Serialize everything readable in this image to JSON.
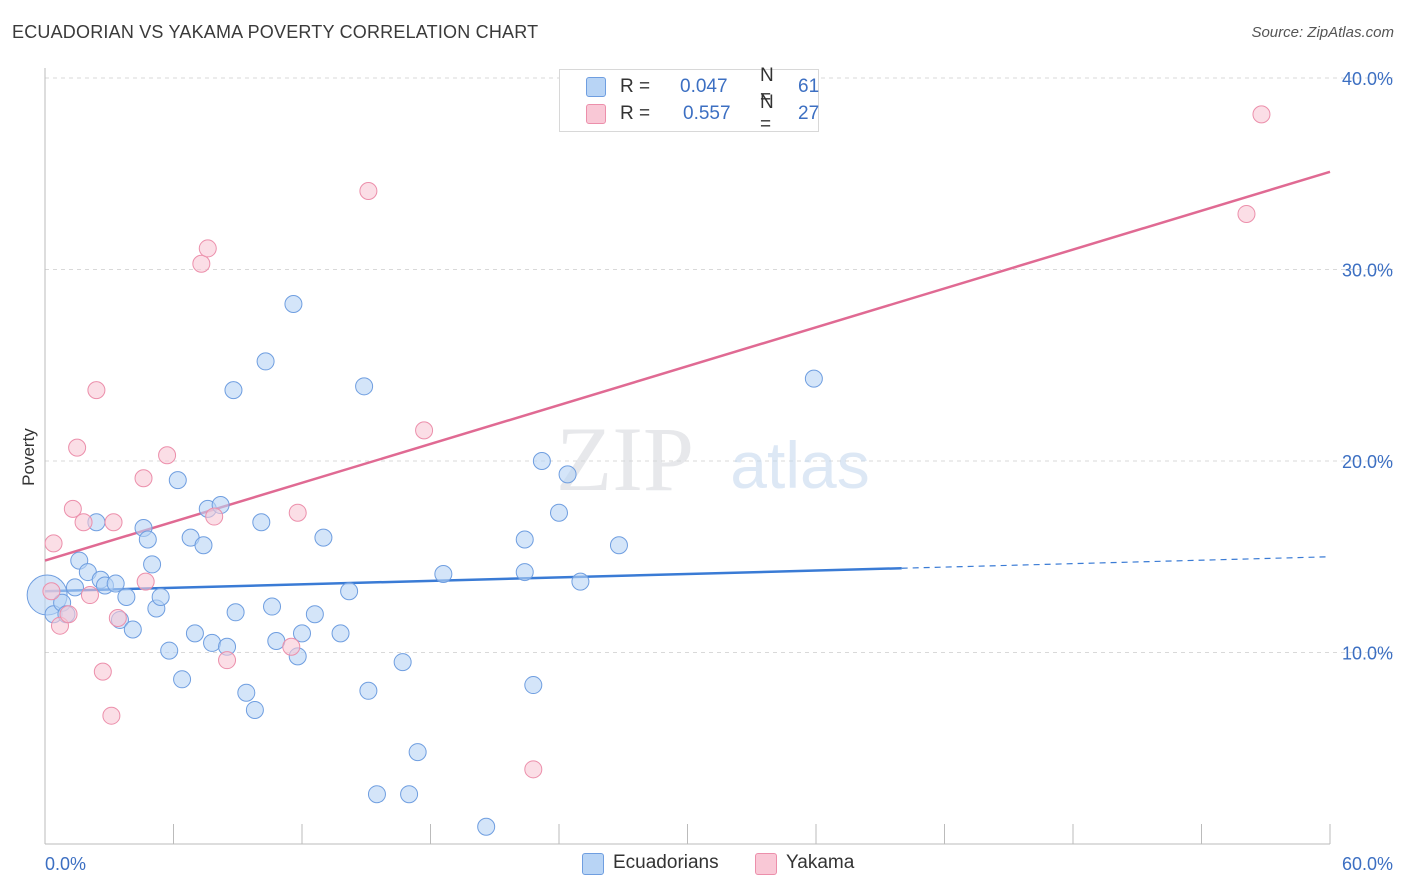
{
  "title": "ECUADORIAN VS YAKAMA POVERTY CORRELATION CHART",
  "source": "Source: ZipAtlas.com",
  "watermark": {
    "zip": "ZIP",
    "atlas": "atlas"
  },
  "colors": {
    "blue_fill": "#b8d4f5",
    "blue_stroke": "#6f9ee0",
    "blue_line": "#3a7bd5",
    "pink_fill": "#f9c8d6",
    "pink_stroke": "#ec8fab",
    "pink_line": "#e06a93",
    "tick_label": "#3c6fc2",
    "grid": "#d9d9d9"
  },
  "legend_top": [
    {
      "r_label": "R =",
      "r_value": "0.047",
      "n_label": "N =",
      "n_value": "61",
      "series": "Ecuadorians"
    },
    {
      "r_label": "R =",
      "r_value": "0.557",
      "n_label": "N =",
      "n_value": "27",
      "series": "Yakama"
    }
  ],
  "legend_bottom": [
    "Ecuadorians",
    "Yakama"
  ],
  "chart_data": {
    "type": "scatter",
    "xlabel": "",
    "ylabel": "Poverty",
    "xlim": [
      0,
      60
    ],
    "ylim": [
      0,
      40
    ],
    "x_tick_labels": [
      "0.0%",
      "60.0%"
    ],
    "y_ticks": [
      10,
      20,
      30,
      40
    ],
    "y_tick_labels": [
      "10.0%",
      "20.0%",
      "30.0%",
      "40.0%"
    ],
    "grid": true,
    "series": [
      {
        "name": "Ecuadorians",
        "trend": {
          "x0": 0,
          "y0": 13.2,
          "x1": 40,
          "y1": 14.4,
          "dashed_to_x": 60,
          "dashed_to_y": 15.0
        },
        "points": [
          [
            0.1,
            13.0
          ],
          [
            0.4,
            12.0
          ],
          [
            0.8,
            12.6
          ],
          [
            1.0,
            12.0
          ],
          [
            1.4,
            13.4
          ],
          [
            1.6,
            14.8
          ],
          [
            2.0,
            14.2
          ],
          [
            2.4,
            16.8
          ],
          [
            2.6,
            13.8
          ],
          [
            2.8,
            13.5
          ],
          [
            3.3,
            13.6
          ],
          [
            3.5,
            11.7
          ],
          [
            3.8,
            12.9
          ],
          [
            4.1,
            11.2
          ],
          [
            4.6,
            16.5
          ],
          [
            4.8,
            15.9
          ],
          [
            5.0,
            14.6
          ],
          [
            5.2,
            12.3
          ],
          [
            5.4,
            12.9
          ],
          [
            5.8,
            10.1
          ],
          [
            6.2,
            19.0
          ],
          [
            6.4,
            8.6
          ],
          [
            6.8,
            16.0
          ],
          [
            7.0,
            11.0
          ],
          [
            7.4,
            15.6
          ],
          [
            7.6,
            17.5
          ],
          [
            7.8,
            10.5
          ],
          [
            8.2,
            17.7
          ],
          [
            8.5,
            10.3
          ],
          [
            8.8,
            23.7
          ],
          [
            8.9,
            12.1
          ],
          [
            9.4,
            7.9
          ],
          [
            9.8,
            7.0
          ],
          [
            10.1,
            16.8
          ],
          [
            10.3,
            25.2
          ],
          [
            10.6,
            12.4
          ],
          [
            10.8,
            10.6
          ],
          [
            11.6,
            28.2
          ],
          [
            11.8,
            9.8
          ],
          [
            12.0,
            11.0
          ],
          [
            12.6,
            12.0
          ],
          [
            13.0,
            16.0
          ],
          [
            13.8,
            11.0
          ],
          [
            14.2,
            13.2
          ],
          [
            14.9,
            23.9
          ],
          [
            15.1,
            8.0
          ],
          [
            15.5,
            2.6
          ],
          [
            16.7,
            9.5
          ],
          [
            17.0,
            2.6
          ],
          [
            17.4,
            4.8
          ],
          [
            18.6,
            14.1
          ],
          [
            20.6,
            0.9
          ],
          [
            22.4,
            14.2
          ],
          [
            22.4,
            15.9
          ],
          [
            22.8,
            8.3
          ],
          [
            23.2,
            20.0
          ],
          [
            24.0,
            17.3
          ],
          [
            24.4,
            19.3
          ],
          [
            25.0,
            13.7
          ],
          [
            26.8,
            15.6
          ],
          [
            35.9,
            24.3
          ]
        ]
      },
      {
        "name": "Yakama",
        "trend": {
          "x0": 0,
          "y0": 14.8,
          "x1": 60,
          "y1": 35.1
        },
        "points": [
          [
            0.4,
            15.7
          ],
          [
            0.7,
            11.4
          ],
          [
            1.1,
            12.0
          ],
          [
            1.3,
            17.5
          ],
          [
            1.5,
            20.7
          ],
          [
            1.8,
            16.8
          ],
          [
            2.1,
            13.0
          ],
          [
            2.4,
            23.7
          ],
          [
            2.7,
            9.0
          ],
          [
            3.1,
            6.7
          ],
          [
            3.2,
            16.8
          ],
          [
            3.4,
            11.8
          ],
          [
            4.6,
            19.1
          ],
          [
            4.7,
            13.7
          ],
          [
            5.7,
            20.3
          ],
          [
            7.3,
            30.3
          ],
          [
            7.6,
            31.1
          ],
          [
            7.9,
            17.1
          ],
          [
            8.5,
            9.6
          ],
          [
            11.5,
            10.3
          ],
          [
            11.8,
            17.3
          ],
          [
            15.1,
            34.1
          ],
          [
            17.7,
            21.6
          ],
          [
            22.8,
            3.9
          ],
          [
            56.1,
            32.9
          ],
          [
            56.8,
            38.1
          ],
          [
            0.3,
            13.2
          ]
        ]
      }
    ]
  }
}
